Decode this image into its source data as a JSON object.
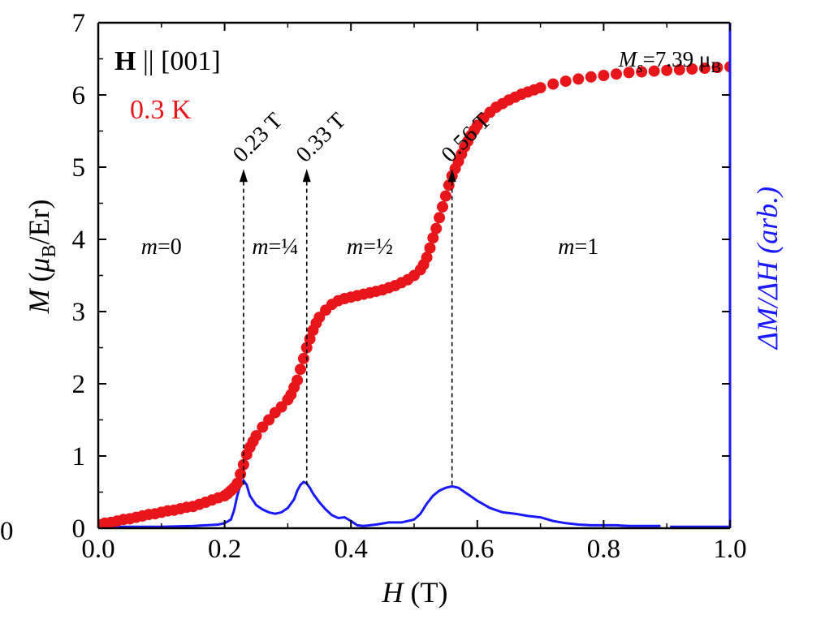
{
  "chart_data": {
    "type": "scatter",
    "x_label": {
      "italic": "H",
      "rest": " (T)"
    },
    "y_label_left": {
      "italic": "M",
      "paren": " (",
      "mu": "μ",
      "sub": "B",
      "rest": "/Er)"
    },
    "y_label_right": "ΔM/ΔH (arb.)",
    "xlim": [
      0.0,
      1.0
    ],
    "ylim": [
      0,
      7
    ],
    "x_ticks": [
      0.0,
      0.2,
      0.4,
      0.6,
      0.8,
      1.0
    ],
    "x_tick_labels": [
      "0.0",
      "0.2",
      "0.4",
      "0.6",
      "0.8",
      "1.0"
    ],
    "y_ticks": [
      0,
      1,
      2,
      3,
      4,
      5,
      6,
      7
    ],
    "y_tick_labels": [
      "0",
      "1",
      "2",
      "3",
      "4",
      "5",
      "6",
      "7"
    ],
    "right_axis_tick_label": "0",
    "colors": {
      "magnetization": "#e8151b",
      "derivative": "#1a1aff",
      "axis_right": "#1a1aff"
    },
    "annotations": {
      "field_direction": {
        "bold": "H",
        "rest": " || [001]"
      },
      "temperature": "0.3 K",
      "saturation": {
        "italic": "M",
        "sub": "s",
        "rest": "=7.39 μ",
        "sub2": "B"
      },
      "transitions": [
        {
          "x": 0.23,
          "label": "0.23 T"
        },
        {
          "x": 0.33,
          "label": "0.33 T"
        },
        {
          "x": 0.56,
          "label": "0.56 T"
        }
      ],
      "phases": [
        {
          "italic": "m",
          "rest": "=0",
          "x": 0.1,
          "y": 3.8
        },
        {
          "italic": "m",
          "rest": "=¼",
          "x": 0.28,
          "y": 3.8
        },
        {
          "italic": "m",
          "rest": "=½",
          "x": 0.43,
          "y": 3.8
        },
        {
          "italic": "m",
          "rest": "=1",
          "x": 0.76,
          "y": 3.8
        }
      ]
    },
    "series": [
      {
        "kind": "markers",
        "points_x": [
          0.0,
          0.01,
          0.02,
          0.03,
          0.04,
          0.05,
          0.06,
          0.07,
          0.08,
          0.09,
          0.1,
          0.11,
          0.12,
          0.13,
          0.14,
          0.15,
          0.16,
          0.17,
          0.18,
          0.19,
          0.2,
          0.205,
          0.21,
          0.215,
          0.22,
          0.225,
          0.23,
          0.235,
          0.24,
          0.245,
          0.25,
          0.26,
          0.27,
          0.28,
          0.29,
          0.3,
          0.305,
          0.31,
          0.315,
          0.32,
          0.325,
          0.33,
          0.335,
          0.34,
          0.345,
          0.35,
          0.36,
          0.37,
          0.38,
          0.39,
          0.4,
          0.41,
          0.42,
          0.43,
          0.44,
          0.45,
          0.46,
          0.47,
          0.48,
          0.49,
          0.5,
          0.51,
          0.515,
          0.52,
          0.525,
          0.53,
          0.535,
          0.54,
          0.545,
          0.55,
          0.555,
          0.56,
          0.565,
          0.57,
          0.575,
          0.58,
          0.585,
          0.59,
          0.595,
          0.6,
          0.61,
          0.62,
          0.63,
          0.64,
          0.65,
          0.66,
          0.67,
          0.68,
          0.69,
          0.7,
          0.72,
          0.74,
          0.76,
          0.78,
          0.8,
          0.82,
          0.84,
          0.86,
          0.88,
          0.9,
          0.92,
          0.94,
          0.96,
          0.98,
          1.0
        ],
        "points_y": [
          0.05,
          0.07,
          0.08,
          0.1,
          0.12,
          0.13,
          0.15,
          0.17,
          0.19,
          0.2,
          0.22,
          0.24,
          0.25,
          0.27,
          0.29,
          0.3,
          0.33,
          0.36,
          0.39,
          0.42,
          0.45,
          0.48,
          0.52,
          0.56,
          0.62,
          0.75,
          0.88,
          1.02,
          1.12,
          1.2,
          1.28,
          1.4,
          1.5,
          1.6,
          1.68,
          1.78,
          1.85,
          1.95,
          2.05,
          2.2,
          2.35,
          2.5,
          2.62,
          2.74,
          2.84,
          2.92,
          3.02,
          3.1,
          3.15,
          3.18,
          3.2,
          3.22,
          3.24,
          3.26,
          3.28,
          3.3,
          3.33,
          3.36,
          3.4,
          3.44,
          3.5,
          3.58,
          3.65,
          3.75,
          3.88,
          4.02,
          4.15,
          4.3,
          4.45,
          4.6,
          4.75,
          4.88,
          4.98,
          5.08,
          5.18,
          5.28,
          5.36,
          5.44,
          5.51,
          5.58,
          5.68,
          5.76,
          5.83,
          5.88,
          5.93,
          5.97,
          6.01,
          6.04,
          6.07,
          6.1,
          6.15,
          6.19,
          6.22,
          6.25,
          6.27,
          6.29,
          6.31,
          6.32,
          6.33,
          6.34,
          6.35,
          6.36,
          6.37,
          6.38,
          6.39
        ]
      },
      {
        "kind": "line",
        "x": [
          0.0,
          0.05,
          0.1,
          0.15,
          0.19,
          0.2,
          0.21,
          0.215,
          0.22,
          0.225,
          0.23,
          0.235,
          0.24,
          0.25,
          0.26,
          0.27,
          0.28,
          0.29,
          0.3,
          0.31,
          0.315,
          0.32,
          0.325,
          0.33,
          0.335,
          0.34,
          0.35,
          0.36,
          0.37,
          0.38,
          0.39,
          0.4,
          0.41,
          0.42,
          0.44,
          0.46,
          0.48,
          0.5,
          0.51,
          0.52,
          0.53,
          0.54,
          0.55,
          0.56,
          0.57,
          0.58,
          0.59,
          0.6,
          0.62,
          0.64,
          0.66,
          0.68,
          0.7,
          0.72,
          0.74,
          0.76,
          0.78,
          0.8,
          0.82,
          0.84,
          0.86,
          0.88,
          0.89
        ],
        "y": [
          0.02,
          0.02,
          0.02,
          0.03,
          0.05,
          0.07,
          0.12,
          0.25,
          0.45,
          0.6,
          0.66,
          0.6,
          0.45,
          0.32,
          0.26,
          0.22,
          0.2,
          0.22,
          0.28,
          0.4,
          0.52,
          0.6,
          0.64,
          0.62,
          0.56,
          0.48,
          0.36,
          0.26,
          0.18,
          0.14,
          0.15,
          0.1,
          0.04,
          0.03,
          0.05,
          0.08,
          0.08,
          0.12,
          0.2,
          0.34,
          0.45,
          0.52,
          0.56,
          0.58,
          0.56,
          0.5,
          0.44,
          0.38,
          0.28,
          0.22,
          0.2,
          0.17,
          0.15,
          0.1,
          0.07,
          0.05,
          0.04,
          0.04,
          0.04,
          0.03,
          0.03,
          0.03,
          0.03
        ]
      },
      {
        "kind": "line",
        "x": [
          0.905,
          0.92,
          0.94,
          0.96,
          0.98,
          1.0
        ],
        "y": [
          0.02,
          0.02,
          0.02,
          0.02,
          0.02,
          0.02
        ]
      }
    ]
  }
}
